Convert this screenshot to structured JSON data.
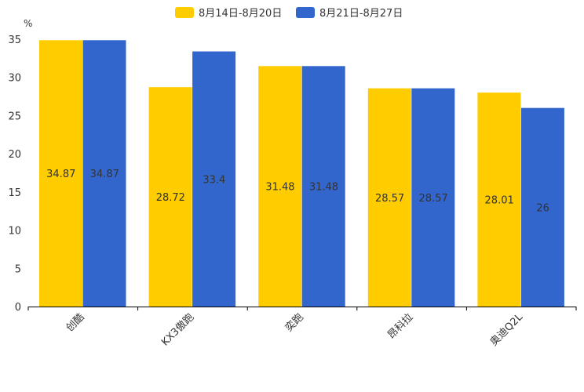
{
  "chart_data": {
    "type": "bar",
    "title": "",
    "xlabel": "",
    "ylabel": "%",
    "ylim": [
      0,
      35
    ],
    "yticks": [
      0,
      5,
      10,
      15,
      20,
      25,
      30,
      35
    ],
    "grid": false,
    "legend_position": "top-center",
    "categories": [
      "创酷",
      "KX3傲跑",
      "奕跑",
      "昂科拉",
      "奥迪Q2L"
    ],
    "series": [
      {
        "name": "8月14日-8月20日",
        "color": "#FFCC00",
        "values": [
          34.87,
          28.72,
          31.48,
          28.57,
          28.01
        ]
      },
      {
        "name": "8月21日-8月27日",
        "color": "#3366CC",
        "values": [
          34.87,
          33.4,
          31.48,
          28.57,
          26
        ]
      }
    ]
  }
}
